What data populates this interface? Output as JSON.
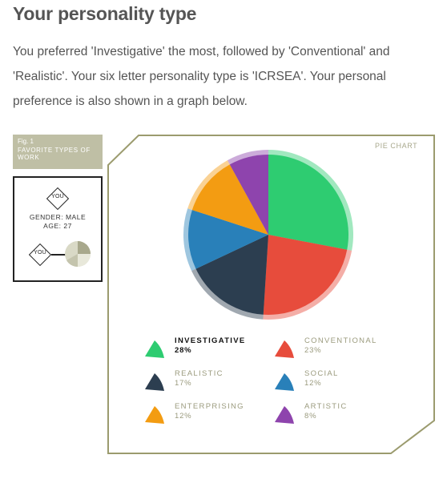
{
  "page": {
    "title": "Your personality type",
    "intro": "You preferred 'Investigative' the most, followed by 'Conventional' and 'Realistic'. Your six letter personality type is 'ICRSEA'. Your personal preference is also shown in a graph below."
  },
  "figure": {
    "number": "Fig. 1",
    "label": "FAVORITE TYPES OF WORK",
    "caption": "PIE CHART"
  },
  "profile": {
    "you_label": "YOU",
    "gender": "GENDER: MALE",
    "age": "AGE: 27"
  },
  "chart_data": {
    "type": "pie",
    "slices": [
      {
        "name": "INVESTIGATIVE",
        "percent_label": "28%",
        "value": 28,
        "color": "#2ecc71",
        "active": true
      },
      {
        "name": "CONVENTIONAL",
        "percent_label": "23%",
        "value": 23,
        "color": "#e74c3c",
        "active": false
      },
      {
        "name": "REALISTIC",
        "percent_label": "17%",
        "value": 17,
        "color": "#2c3e50",
        "active": false
      },
      {
        "name": "SOCIAL",
        "percent_label": "12%",
        "value": 12,
        "color": "#2980b9",
        "active": false
      },
      {
        "name": "ENTERPRISING",
        "percent_label": "12%",
        "value": 12,
        "color": "#f39c12",
        "active": false
      },
      {
        "name": "ARTISTIC",
        "percent_label": "8%",
        "value": 8,
        "color": "#8e44ad",
        "active": false
      }
    ],
    "legend_colors": {
      "frame": "#9b9b6e",
      "label": "#bfbfa5"
    }
  }
}
